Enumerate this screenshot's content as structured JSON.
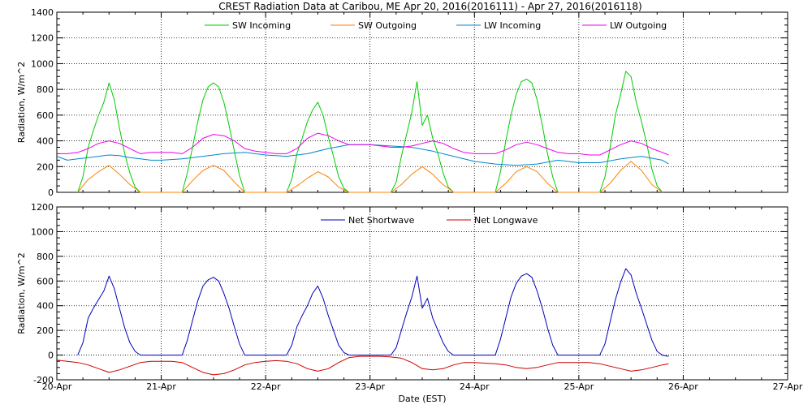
{
  "title": "CREST Radiation Data at Caribou, ME   Apr 20, 2016(2016111) - Apr 27, 2016(2016118)",
  "xlabel": "Date (EST)",
  "x_tick_labels": [
    "20-Apr",
    "21-Apr",
    "22-Apr",
    "23-Apr",
    "24-Apr",
    "25-Apr",
    "26-Apr",
    "27-Apr"
  ],
  "chart_data": [
    {
      "type": "line",
      "title": "CREST Radiation Data at Caribou, ME   Apr 20, 2016(2016111) - Apr 27, 2016(2016118)",
      "xlabel": "",
      "ylabel": "Radiation, W/m^2",
      "xlim": [
        0,
        7
      ],
      "ylim": [
        0,
        1400
      ],
      "y_ticks": [
        0,
        200,
        400,
        600,
        800,
        1000,
        1200,
        1400
      ],
      "grid": true,
      "legend": "top",
      "series": [
        {
          "name": "SW Incoming",
          "color": "#00cc00",
          "x": [
            0.2,
            0.25,
            0.3,
            0.35,
            0.4,
            0.45,
            0.5,
            0.55,
            0.6,
            0.65,
            0.7,
            0.75,
            0.8,
            1.2,
            1.25,
            1.3,
            1.35,
            1.4,
            1.45,
            1.5,
            1.55,
            1.6,
            1.65,
            1.7,
            1.75,
            1.8,
            2.2,
            2.25,
            2.3,
            2.35,
            2.4,
            2.45,
            2.5,
            2.55,
            2.6,
            2.65,
            2.7,
            2.75,
            2.8,
            3.2,
            3.25,
            3.3,
            3.35,
            3.4,
            3.45,
            3.5,
            3.55,
            3.6,
            3.65,
            3.7,
            3.75,
            3.8,
            4.2,
            4.25,
            4.3,
            4.35,
            4.4,
            4.45,
            4.5,
            4.55,
            4.6,
            4.65,
            4.7,
            4.75,
            4.8,
            5.2,
            5.25,
            5.3,
            5.35,
            5.4,
            5.45,
            5.5,
            5.55,
            5.6,
            5.65,
            5.7,
            5.75,
            5.8
          ],
          "y": [
            0,
            120,
            350,
            480,
            600,
            700,
            850,
            720,
            500,
            300,
            150,
            40,
            0,
            0,
            150,
            350,
            550,
            720,
            820,
            850,
            820,
            700,
            520,
            320,
            130,
            0,
            0,
            100,
            300,
            420,
            550,
            640,
            700,
            600,
            430,
            280,
            120,
            30,
            0,
            0,
            80,
            280,
            450,
            620,
            860,
            520,
            600,
            420,
            300,
            150,
            40,
            0,
            0,
            160,
            400,
            600,
            760,
            860,
            880,
            850,
            720,
            520,
            300,
            120,
            0,
            0,
            120,
            350,
            600,
            760,
            940,
            900,
            700,
            550,
            380,
            180,
            50,
            0
          ]
        },
        {
          "name": "SW Outgoing",
          "color": "#ff8000",
          "x": [
            0.2,
            0.3,
            0.4,
            0.5,
            0.6,
            0.7,
            0.8,
            1.2,
            1.3,
            1.4,
            1.5,
            1.6,
            1.7,
            1.8,
            2.2,
            2.3,
            2.4,
            2.5,
            2.6,
            2.7,
            2.8,
            3.2,
            3.3,
            3.4,
            3.5,
            3.6,
            3.7,
            3.8,
            4.2,
            4.3,
            4.4,
            4.5,
            4.6,
            4.7,
            4.8,
            5.2,
            5.3,
            5.4,
            5.5,
            5.6,
            5.7,
            5.8
          ],
          "y": [
            0,
            100,
            160,
            210,
            140,
            60,
            0,
            0,
            90,
            170,
            210,
            170,
            80,
            0,
            0,
            50,
            110,
            160,
            120,
            40,
            0,
            0,
            60,
            140,
            200,
            140,
            60,
            0,
            0,
            70,
            160,
            200,
            160,
            70,
            0,
            0,
            70,
            170,
            240,
            170,
            60,
            0
          ]
        },
        {
          "name": "LW Incoming",
          "color": "#0088cc",
          "x": [
            0,
            0.1,
            0.2,
            0.3,
            0.4,
            0.5,
            0.6,
            0.7,
            0.8,
            0.9,
            1.0,
            1.2,
            1.4,
            1.6,
            1.8,
            2.0,
            2.2,
            2.4,
            2.6,
            2.8,
            3.0,
            3.2,
            3.4,
            3.6,
            3.8,
            4.0,
            4.2,
            4.4,
            4.6,
            4.8,
            5.0,
            5.2,
            5.4,
            5.6,
            5.8,
            5.86
          ],
          "y": [
            280,
            250,
            260,
            270,
            280,
            290,
            285,
            270,
            260,
            250,
            250,
            260,
            280,
            300,
            310,
            290,
            280,
            300,
            340,
            370,
            370,
            360,
            350,
            320,
            280,
            240,
            220,
            210,
            220,
            250,
            230,
            230,
            260,
            280,
            250,
            220
          ]
        },
        {
          "name": "LW Outgoing",
          "color": "#ee00ee",
          "x": [
            0,
            0.1,
            0.2,
            0.3,
            0.4,
            0.5,
            0.6,
            0.7,
            0.8,
            0.9,
            1.0,
            1.1,
            1.2,
            1.3,
            1.4,
            1.5,
            1.6,
            1.7,
            1.8,
            1.9,
            2.0,
            2.1,
            2.2,
            2.3,
            2.4,
            2.5,
            2.6,
            2.7,
            2.8,
            2.9,
            3.0,
            3.1,
            3.2,
            3.3,
            3.4,
            3.5,
            3.6,
            3.7,
            3.8,
            3.9,
            4.0,
            4.1,
            4.2,
            4.3,
            4.4,
            4.5,
            4.6,
            4.7,
            4.8,
            4.9,
            5.0,
            5.1,
            5.2,
            5.3,
            5.4,
            5.5,
            5.6,
            5.7,
            5.8,
            5.86
          ],
          "y": [
            300,
            300,
            310,
            340,
            380,
            400,
            380,
            340,
            300,
            310,
            310,
            310,
            300,
            350,
            420,
            450,
            440,
            400,
            340,
            320,
            310,
            300,
            300,
            340,
            420,
            460,
            440,
            400,
            370,
            370,
            370,
            360,
            350,
            350,
            360,
            380,
            400,
            380,
            340,
            310,
            300,
            300,
            300,
            330,
            370,
            390,
            370,
            340,
            310,
            300,
            300,
            290,
            290,
            330,
            370,
            400,
            380,
            340,
            310,
            290
          ]
        }
      ]
    },
    {
      "type": "line",
      "title": "",
      "xlabel": "Date (EST)",
      "ylabel": "Radiation, W/m^2",
      "xlim": [
        0,
        7
      ],
      "ylim": [
        -200,
        1200
      ],
      "y_ticks": [
        -200,
        0,
        200,
        400,
        600,
        800,
        1000,
        1200
      ],
      "grid": true,
      "legend": "top",
      "series": [
        {
          "name": "Net Shortwave",
          "color": "#0000bb",
          "x": [
            0.2,
            0.25,
            0.3,
            0.35,
            0.4,
            0.45,
            0.5,
            0.55,
            0.6,
            0.65,
            0.7,
            0.75,
            0.8,
            1.0,
            1.2,
            1.25,
            1.3,
            1.35,
            1.4,
            1.45,
            1.5,
            1.55,
            1.6,
            1.65,
            1.7,
            1.75,
            1.8,
            2.0,
            2.2,
            2.25,
            2.3,
            2.35,
            2.4,
            2.45,
            2.5,
            2.55,
            2.6,
            2.65,
            2.7,
            2.75,
            2.8,
            3.0,
            3.2,
            3.25,
            3.3,
            3.35,
            3.4,
            3.45,
            3.5,
            3.55,
            3.6,
            3.65,
            3.7,
            3.75,
            3.8,
            4.0,
            4.2,
            4.25,
            4.3,
            4.35,
            4.4,
            4.45,
            4.5,
            4.55,
            4.6,
            4.65,
            4.7,
            4.75,
            4.8,
            5.0,
            5.2,
            5.25,
            5.3,
            5.35,
            5.4,
            5.45,
            5.5,
            5.55,
            5.6,
            5.65,
            5.7,
            5.75,
            5.8,
            5.86
          ],
          "y": [
            0,
            100,
            300,
            380,
            450,
            520,
            640,
            540,
            380,
            220,
            100,
            30,
            0,
            0,
            0,
            120,
            280,
            440,
            560,
            610,
            630,
            600,
            500,
            380,
            230,
            90,
            0,
            0,
            0,
            80,
            230,
            320,
            400,
            500,
            560,
            460,
            320,
            200,
            80,
            20,
            0,
            0,
            0,
            60,
            200,
            340,
            470,
            640,
            380,
            460,
            300,
            200,
            100,
            30,
            0,
            0,
            0,
            130,
            300,
            470,
            580,
            640,
            660,
            630,
            520,
            380,
            220,
            80,
            0,
            0,
            0,
            90,
            270,
            450,
            590,
            700,
            650,
            500,
            380,
            250,
            120,
            30,
            0,
            -10
          ]
        },
        {
          "name": "Net Longwave",
          "color": "#cc0000",
          "x": [
            0,
            0.1,
            0.2,
            0.3,
            0.4,
            0.5,
            0.6,
            0.7,
            0.8,
            0.9,
            1.0,
            1.1,
            1.2,
            1.3,
            1.4,
            1.5,
            1.6,
            1.7,
            1.8,
            1.9,
            2.0,
            2.1,
            2.2,
            2.3,
            2.4,
            2.5,
            2.6,
            2.7,
            2.8,
            2.9,
            3.0,
            3.1,
            3.2,
            3.3,
            3.4,
            3.5,
            3.6,
            3.7,
            3.8,
            3.9,
            4.0,
            4.1,
            4.2,
            4.3,
            4.4,
            4.5,
            4.6,
            4.7,
            4.8,
            4.9,
            5.0,
            5.1,
            5.2,
            5.3,
            5.4,
            5.5,
            5.6,
            5.7,
            5.8,
            5.86
          ],
          "y": [
            -40,
            -50,
            -60,
            -80,
            -110,
            -140,
            -120,
            -90,
            -60,
            -50,
            -50,
            -50,
            -60,
            -100,
            -140,
            -160,
            -150,
            -120,
            -80,
            -60,
            -50,
            -45,
            -50,
            -70,
            -110,
            -130,
            -110,
            -60,
            -20,
            -10,
            -10,
            -10,
            -15,
            -25,
            -60,
            -110,
            -120,
            -110,
            -80,
            -60,
            -60,
            -65,
            -70,
            -80,
            -100,
            -110,
            -100,
            -80,
            -60,
            -60,
            -60,
            -60,
            -70,
            -90,
            -110,
            -130,
            -120,
            -100,
            -80,
            -70
          ]
        }
      ]
    }
  ]
}
